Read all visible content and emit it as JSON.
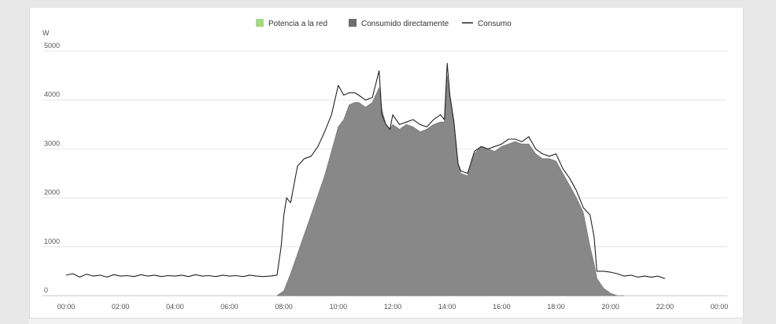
{
  "chart_data": {
    "type": "area",
    "ylabel": "W",
    "ylim": [
      0,
      5000
    ],
    "xlim": [
      0,
      24
    ],
    "y_ticks": [
      "0",
      "1000",
      "2000",
      "3000",
      "4000",
      "5000"
    ],
    "x_ticks": [
      "00:00",
      "02:00",
      "04:00",
      "06:00",
      "08:00",
      "10:00",
      "12:00",
      "14:00",
      "16:00",
      "18:00",
      "20:00",
      "22:00",
      "00:00"
    ],
    "grid": true,
    "legend_position": "top-center",
    "legend": [
      {
        "label": "Potencia a la red",
        "color": "#a6d785",
        "symbol": "square"
      },
      {
        "label": "Consumido directamente",
        "color": "#6e6e6e",
        "symbol": "square"
      },
      {
        "label": "Consumo",
        "color": "#222222",
        "symbol": "line"
      }
    ],
    "series": [
      {
        "name": "Consumido directamente",
        "kind": "area",
        "color": "#888888",
        "x": [
          7.75,
          8.0,
          8.25,
          8.5,
          8.75,
          9.0,
          9.25,
          9.5,
          9.75,
          10.0,
          10.2,
          10.4,
          10.6,
          10.75,
          11.0,
          11.25,
          11.5,
          11.6,
          11.75,
          11.9,
          12.0,
          12.25,
          12.5,
          12.75,
          13.0,
          13.25,
          13.5,
          13.75,
          13.9,
          14.0,
          14.1,
          14.25,
          14.4,
          14.5,
          14.75,
          15.0,
          15.25,
          15.5,
          15.75,
          16.0,
          16.25,
          16.5,
          16.75,
          17.0,
          17.25,
          17.5,
          17.75,
          18.0,
          18.25,
          18.5,
          18.75,
          19.0,
          19.25,
          19.4,
          19.5,
          19.75,
          20.0,
          20.25,
          20.5
        ],
        "y": [
          0,
          100,
          450,
          850,
          1250,
          1650,
          2050,
          2450,
          2950,
          3450,
          3600,
          3900,
          3950,
          3950,
          3850,
          3950,
          4250,
          3800,
          3500,
          3400,
          3500,
          3400,
          3500,
          3450,
          3350,
          3400,
          3500,
          3550,
          3550,
          4500,
          4000,
          3500,
          2700,
          2500,
          2450,
          2900,
          3050,
          3000,
          2950,
          3050,
          3100,
          3150,
          3100,
          3100,
          2900,
          2800,
          2800,
          2750,
          2500,
          2250,
          2000,
          1700,
          1000,
          650,
          350,
          150,
          50,
          0,
          0
        ]
      },
      {
        "name": "Consumo",
        "kind": "line",
        "color": "#222222",
        "x": [
          0.0,
          0.25,
          0.5,
          0.75,
          1.0,
          1.25,
          1.5,
          1.75,
          2.0,
          2.25,
          2.5,
          2.75,
          3.0,
          3.25,
          3.5,
          3.75,
          4.0,
          4.25,
          4.5,
          4.75,
          5.0,
          5.25,
          5.5,
          5.75,
          6.0,
          6.25,
          6.5,
          6.75,
          7.0,
          7.25,
          7.5,
          7.75,
          7.9,
          8.0,
          8.1,
          8.25,
          8.5,
          8.75,
          9.0,
          9.25,
          9.5,
          9.75,
          10.0,
          10.2,
          10.4,
          10.6,
          10.75,
          11.0,
          11.25,
          11.5,
          11.6,
          11.75,
          11.9,
          12.0,
          12.25,
          12.5,
          12.75,
          13.0,
          13.25,
          13.5,
          13.75,
          13.9,
          14.0,
          14.1,
          14.25,
          14.4,
          14.5,
          14.75,
          15.0,
          15.25,
          15.5,
          15.75,
          16.0,
          16.25,
          16.5,
          16.75,
          17.0,
          17.25,
          17.5,
          17.75,
          18.0,
          18.25,
          18.5,
          18.75,
          19.0,
          19.25,
          19.4,
          19.5,
          19.75,
          20.0,
          20.25,
          20.5,
          20.75,
          21.0,
          21.25,
          21.5,
          21.75,
          22.0
        ],
        "y": [
          420,
          450,
          380,
          440,
          400,
          420,
          380,
          430,
          400,
          410,
          390,
          430,
          400,
          420,
          390,
          410,
          400,
          420,
          390,
          430,
          400,
          410,
          390,
          420,
          400,
          410,
          390,
          420,
          400,
          390,
          400,
          420,
          1000,
          1650,
          2000,
          1900,
          2650,
          2800,
          2850,
          3050,
          3350,
          3700,
          4300,
          4100,
          4150,
          4150,
          4100,
          4000,
          4050,
          4600,
          3700,
          3500,
          3400,
          3700,
          3500,
          3550,
          3600,
          3500,
          3450,
          3600,
          3700,
          3600,
          4750,
          4100,
          3550,
          2700,
          2550,
          2500,
          2950,
          3050,
          3000,
          3050,
          3100,
          3200,
          3200,
          3150,
          3250,
          3000,
          2900,
          2850,
          2900,
          2600,
          2400,
          2150,
          1800,
          1650,
          1200,
          500,
          500,
          480,
          450,
          400,
          420,
          380,
          400,
          380,
          400,
          350
        ]
      }
    ]
  }
}
